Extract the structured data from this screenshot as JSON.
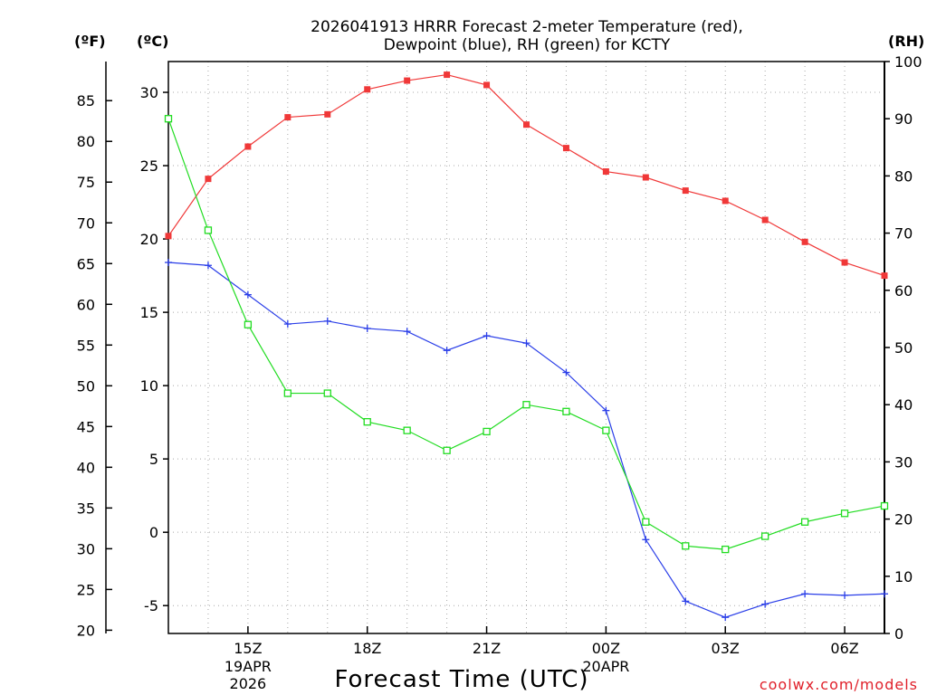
{
  "chart_data": {
    "type": "line",
    "title_lines": [
      "2026041913 HRRR Forecast 2-meter Temperature (red),",
      "Dewpoint (blue), RH (green) for KCTY"
    ],
    "xlabel": "Forecast Time (UTC)",
    "credit": "coolwx.com/models",
    "units": {
      "fahrenheit": "(ºF)",
      "celsius": "(ºC)",
      "rh": "(RH)"
    },
    "x_hours": [
      13,
      14,
      15,
      16,
      17,
      18,
      19,
      20,
      21,
      22,
      23,
      24,
      25,
      26,
      27,
      28,
      29,
      30,
      31
    ],
    "xlim": [
      13,
      31
    ],
    "x_ticks": [
      {
        "hour": 15,
        "label": "15Z",
        "sub": [
          "19APR",
          "2026"
        ]
      },
      {
        "hour": 18,
        "label": "18Z",
        "sub": []
      },
      {
        "hour": 21,
        "label": "21Z",
        "sub": []
      },
      {
        "hour": 24,
        "label": "00Z",
        "sub": [
          "20APR"
        ]
      },
      {
        "hour": 27,
        "label": "03Z",
        "sub": []
      },
      {
        "hour": 30,
        "label": "06Z",
        "sub": []
      }
    ],
    "celsius_axis": {
      "lim": [
        -6.9,
        32.1
      ],
      "ticks": [
        -5,
        0,
        5,
        10,
        15,
        20,
        25,
        30
      ],
      "labels": [
        "-5",
        "0",
        "5",
        "10",
        "15",
        "20",
        "25",
        "30"
      ]
    },
    "fahrenheit_axis": {
      "lim": [
        19.6,
        89.8
      ],
      "ticks": [
        20,
        25,
        30,
        35,
        40,
        45,
        50,
        55,
        60,
        65,
        70,
        75,
        80,
        85
      ],
      "labels": [
        "20",
        "25",
        "30",
        "35",
        "40",
        "45",
        "50",
        "55",
        "60",
        "65",
        "70",
        "75",
        "80",
        "85"
      ]
    },
    "rh_axis": {
      "lim": [
        0,
        100
      ],
      "ticks": [
        0,
        10,
        20,
        30,
        40,
        50,
        60,
        70,
        80,
        90,
        100
      ],
      "labels": [
        "0",
        "10",
        "20",
        "30",
        "40",
        "50",
        "60",
        "70",
        "80",
        "90",
        "100"
      ]
    },
    "series": [
      {
        "name": "2-meter Temperature",
        "axis": "celsius",
        "color": "#f03838",
        "marker": "filled-square",
        "values": [
          20.2,
          24.1,
          26.3,
          28.3,
          28.5,
          30.2,
          30.8,
          31.2,
          30.5,
          27.8,
          26.2,
          24.6,
          24.2,
          23.3,
          22.6,
          21.3,
          19.8,
          18.4,
          17.5
        ]
      },
      {
        "name": "Dewpoint",
        "axis": "celsius",
        "color": "#2a3ee8",
        "marker": "plus",
        "values": [
          18.4,
          18.2,
          16.2,
          14.2,
          14.4,
          13.9,
          13.7,
          12.4,
          13.4,
          12.9,
          10.9,
          8.3,
          -0.5,
          -4.7,
          -5.8,
          -4.9,
          -4.2,
          -4.3,
          -4.2
        ]
      },
      {
        "name": "RH",
        "axis": "rh",
        "color": "#20dc20",
        "marker": "open-square",
        "values": [
          90,
          70.5,
          54,
          42,
          42,
          37,
          35.5,
          32,
          35.3,
          40,
          38.8,
          35.5,
          19.5,
          15.3,
          14.7,
          17,
          19.5,
          21,
          22.3
        ]
      }
    ]
  }
}
